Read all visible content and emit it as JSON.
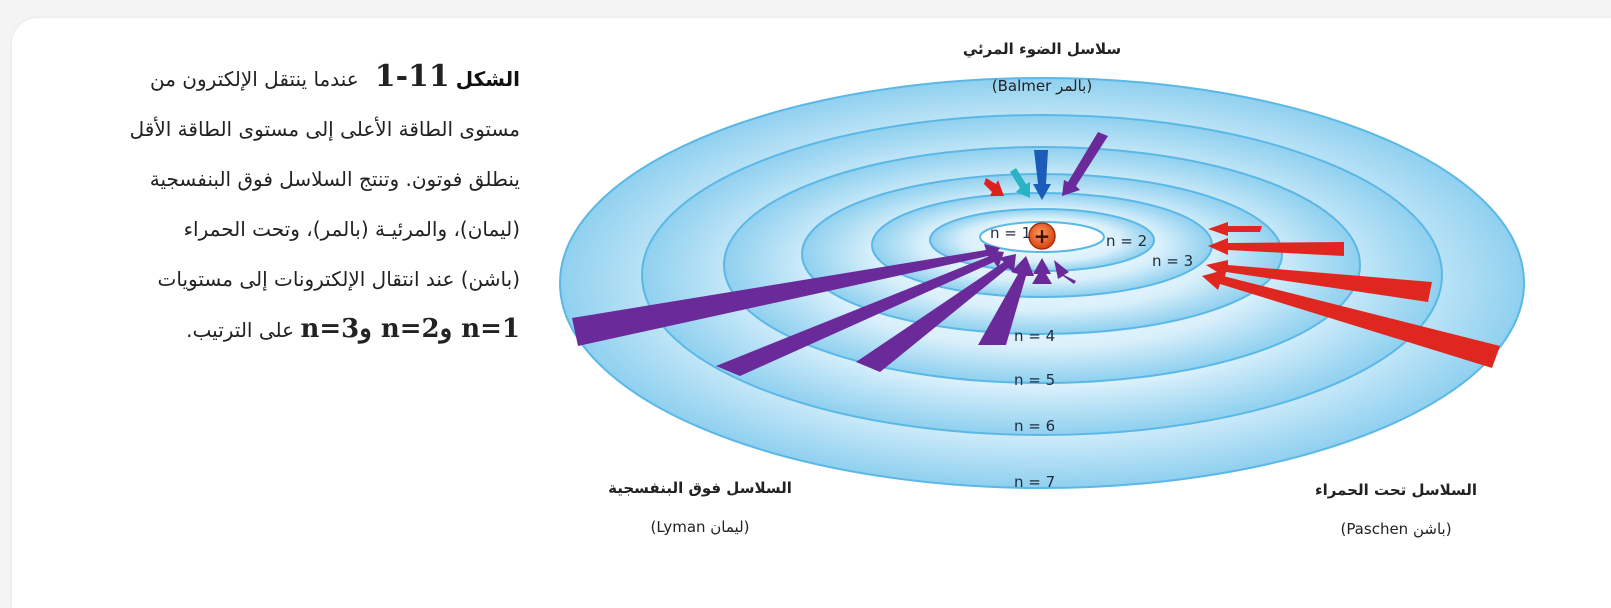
{
  "caption": {
    "fig_label": "الشكل",
    "fig_number": "11-1",
    "line1_rest": "عندما ينتقل الإلكترون من",
    "line2": "مستوى الطاقة الأعلى إلى مستوى الطاقة الأقل",
    "line3": "ينطلق فوتون. وتنتج السلاسل فوق البنفسجية",
    "line4": "(ليمان)، والمرئيـة (بالمر)، وتحت الحمراء",
    "line5": "(باشن) عند انتقال الإلكترونات إلى مستويات",
    "line6_eq": "n=1 وn=2 وn=3",
    "line6_rest": "على الترتيب."
  },
  "diagram": {
    "balmer_title": "سلاسل الضوء المرئي",
    "balmer_sub": "(بالمر Balmer)",
    "lyman_title": "السلاسل فوق البنفسجية",
    "lyman_sub": "(ليمان Lyman)",
    "paschen_title": "السلاسل تحت الحمراء",
    "paschen_sub": "(باشن Paschen)",
    "nucleus_symbol": "+",
    "levels": [
      "n = 1",
      "n = 2",
      "n = 3",
      "n = 4",
      "n = 5",
      "n = 6",
      "n = 7"
    ]
  },
  "colors": {
    "orbit_fill": "#a8daf2",
    "orbit_edge": "#5bb8e6",
    "nucleus": "#e8551f",
    "lyman_arrows": "#6a2a9a",
    "balmer_blue": "#1a5cb8",
    "balmer_cyan": "#2ab3c4",
    "balmer_red": "#e02020",
    "paschen_arrows": "#e0271f"
  }
}
